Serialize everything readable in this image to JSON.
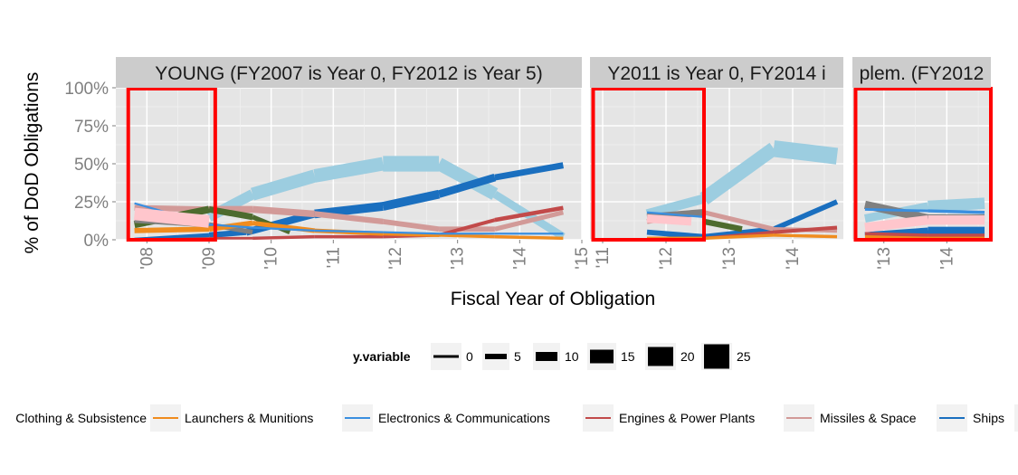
{
  "chart_data": {
    "type": "line",
    "xlabel": "Fiscal Year of Obligation",
    "ylabel": "% of DoD Obligations",
    "y_ticks": [
      "0%",
      "25%",
      "50%",
      "75%",
      "100%"
    ],
    "ylim": [
      0,
      1
    ],
    "grid": true,
    "legend_placement": "bottom",
    "size_legend": {
      "title": "y.variable",
      "values": [
        "0",
        "5",
        "10",
        "15",
        "20",
        "25"
      ]
    },
    "color_legend": [
      {
        "name": "Clothing & Subsistence",
        "color": "#4d6b2e"
      },
      {
        "name": "Launchers & Munitions",
        "color": "#f08c1e"
      },
      {
        "name": "Electronics & Communications",
        "color": "#3a8fe0"
      },
      {
        "name": "Engines & Power Plants",
        "color": "#c24a4a"
      },
      {
        "name": "Missiles & Space",
        "color": "#d29a98"
      },
      {
        "name": "Ships",
        "color": "#1a6fbf"
      }
    ],
    "panels": [
      {
        "strip": "YOUNG (FY2007 is Year 0, FY2012 is Year 5)",
        "x_ticks": [
          "'08",
          "'09",
          "'10",
          "'11",
          "'12",
          "'13",
          "'14",
          "'15"
        ],
        "xlim": [
          2007.5,
          2015
        ],
        "highlight_x": [
          2007.7,
          2009.1
        ],
        "series": [
          {
            "color": "#9ccde0",
            "x": [
              2009,
              2009.7,
              2010.7,
              2011.8,
              2012.7,
              2013.6,
              2014.7
            ],
            "y": [
              0.15,
              0.3,
              0.42,
              0.5,
              0.5,
              0.3,
              0.02
            ],
            "w": [
              6,
              14,
              11,
              15,
              15,
              10,
              5
            ]
          },
          {
            "color": "#1a6fbf",
            "x": [
              2007.8,
              2009,
              2009.6,
              2010.7,
              2011.8,
              2012.7,
              2013.6,
              2014.7
            ],
            "y": [
              0.0,
              0.03,
              0.05,
              0.17,
              0.22,
              0.3,
              0.41,
              0.49
            ],
            "w": [
              3,
              5,
              6,
              8,
              9,
              8,
              7,
              5
            ]
          },
          {
            "color": "#d29a98",
            "x": [
              2007.8,
              2009,
              2009.7,
              2010.7,
              2011.8,
              2012.7,
              2013.6,
              2014.7
            ],
            "y": [
              0.21,
              0.2,
              0.2,
              0.17,
              0.12,
              0.07,
              0.07,
              0.18
            ],
            "w": [
              5,
              6,
              7,
              6,
              5,
              5,
              5,
              4
            ]
          },
          {
            "color": "#c24a4a",
            "x": [
              2007.8,
              2009,
              2009.7,
              2010.7,
              2011.8,
              2012.7,
              2013.6,
              2014.7
            ],
            "y": [
              0.0,
              0.01,
              0.01,
              0.02,
              0.02,
              0.03,
              0.13,
              0.21
            ],
            "w": [
              2,
              2,
              3,
              3,
              3,
              3,
              4,
              4
            ]
          },
          {
            "color": "#4d6b2e",
            "x": [
              2007.8,
              2009,
              2009.7,
              2010.3
            ],
            "y": [
              0.1,
              0.2,
              0.15,
              0.05
            ],
            "w": [
              7,
              7,
              5,
              4
            ]
          },
          {
            "color": "#808080",
            "x": [
              2007.8,
              2009,
              2009.7
            ],
            "y": [
              0.13,
              0.1,
              0.05
            ],
            "w": [
              6,
              5,
              4
            ]
          },
          {
            "color": "#f08c1e",
            "x": [
              2007.8,
              2009,
              2009.7,
              2010.7,
              2011.8,
              2012.7,
              2013.6,
              2014.7
            ],
            "y": [
              0.06,
              0.07,
              0.11,
              0.06,
              0.04,
              0.03,
              0.02,
              0.01
            ],
            "w": [
              5,
              5,
              5,
              4,
              4,
              3,
              3,
              3
            ]
          },
          {
            "color": "#3a8fe0",
            "x": [
              2007.8,
              2009,
              2009.7,
              2010.7,
              2011.8,
              2012.7,
              2013.6,
              2014.7
            ],
            "y": [
              0.24,
              0.1,
              0.08,
              0.06,
              0.05,
              0.04,
              0.04,
              0.04
            ],
            "w": [
              2,
              2,
              2,
              2,
              2,
              2,
              2,
              2
            ]
          },
          {
            "color": "#ffc6cc",
            "x": [
              2007.8,
              2009
            ],
            "y": [
              0.17,
              0.12
            ],
            "w": [
              11,
              13
            ]
          }
        ]
      },
      {
        "strip": "Y2011 is Year 0, FY2014 i",
        "x_ticks": [
          "'11",
          "'12",
          "'13",
          "'14"
        ],
        "xlim": [
          2010.8,
          2014.8
        ],
        "highlight_x": [
          2010.85,
          2012.6
        ],
        "series": [
          {
            "color": "#9ccde0",
            "x": [
              2011.7,
              2012.6,
              2013.7,
              2014.7
            ],
            "y": [
              0.17,
              0.27,
              0.6,
              0.55
            ],
            "w": [
              6,
              12,
              15,
              17
            ]
          },
          {
            "color": "#1a6fbf",
            "x": [
              2011.7,
              2012.6,
              2013.7,
              2014.7
            ],
            "y": [
              0.05,
              0.02,
              0.07,
              0.25
            ],
            "w": [
              5,
              5,
              5,
              5
            ]
          },
          {
            "color": "#d29a98",
            "x": [
              2011.7,
              2012.6,
              2013.7,
              2014.7
            ],
            "y": [
              0.12,
              0.18,
              0.07,
              0.06
            ],
            "w": [
              5,
              5,
              4,
              4
            ]
          },
          {
            "color": "#c24a4a",
            "x": [
              2011.7,
              2012.6,
              2013.7,
              2014.7
            ],
            "y": [
              0.01,
              0.01,
              0.05,
              0.08
            ],
            "w": [
              3,
              3,
              3,
              4
            ]
          },
          {
            "color": "#4d6b2e",
            "x": [
              2012.6,
              2013.2
            ],
            "y": [
              0.12,
              0.07
            ],
            "w": [
              6,
              5
            ]
          },
          {
            "color": "#808080",
            "x": [
              2011.7,
              2012.6
            ],
            "y": [
              0.15,
              0.18
            ],
            "w": [
              7,
              6
            ]
          },
          {
            "color": "#f08c1e",
            "x": [
              2011.7,
              2012.6,
              2013.7,
              2014.7
            ],
            "y": [
              0.01,
              0.01,
              0.03,
              0.02
            ],
            "w": [
              3,
              3,
              3,
              3
            ]
          },
          {
            "color": "#3a8fe0",
            "x": [
              2011.7,
              2012.6
            ],
            "y": [
              0.18,
              0.15
            ],
            "w": [
              2,
              2
            ]
          },
          {
            "color": "#ffc6cc",
            "x": [
              2011.7,
              2012.4
            ],
            "y": [
              0.14,
              0.12
            ],
            "w": [
              8,
              8
            ]
          }
        ]
      },
      {
        "strip": "plem. (FY2012",
        "x_ticks": [
          "'13",
          "'14"
        ],
        "xlim": [
          2012.5,
          2014.7
        ],
        "highlight_x": [
          2012.55,
          2014.7
        ],
        "series": [
          {
            "color": "#9ccde0",
            "x": [
              2012.7,
              2013.7,
              2014.6
            ],
            "y": [
              0.14,
              0.22,
              0.24
            ],
            "w": [
              6,
              10,
              12
            ]
          },
          {
            "color": "#808080",
            "x": [
              2012.7,
              2013.7,
              2014.6
            ],
            "y": [
              0.23,
              0.14,
              0.14
            ],
            "w": [
              8,
              8,
              8
            ]
          },
          {
            "color": "#1a6fbf",
            "x": [
              2012.7,
              2013.7,
              2014.6
            ],
            "y": [
              0.03,
              0.06,
              0.06
            ],
            "w": [
              5,
              7,
              8
            ]
          },
          {
            "color": "#3a8fe0",
            "x": [
              2012.7,
              2013.7,
              2014.6
            ],
            "y": [
              0.2,
              0.19,
              0.18
            ],
            "w": [
              2,
              3,
              3
            ]
          },
          {
            "color": "#ffc6cc",
            "x": [
              2012.7,
              2013.7,
              2014.6
            ],
            "y": [
              0.08,
              0.13,
              0.13
            ],
            "w": [
              9,
              9,
              9
            ]
          },
          {
            "color": "#f08c1e",
            "x": [
              2012.7,
              2013.7,
              2014.6
            ],
            "y": [
              0.02,
              0.02,
              0.02
            ],
            "w": [
              3,
              3,
              3
            ]
          },
          {
            "color": "#c24a4a",
            "x": [
              2012.7,
              2013.7,
              2014.6
            ],
            "y": [
              0.04,
              0.03,
              0.03
            ],
            "w": [
              3,
              3,
              3
            ]
          }
        ]
      }
    ]
  }
}
